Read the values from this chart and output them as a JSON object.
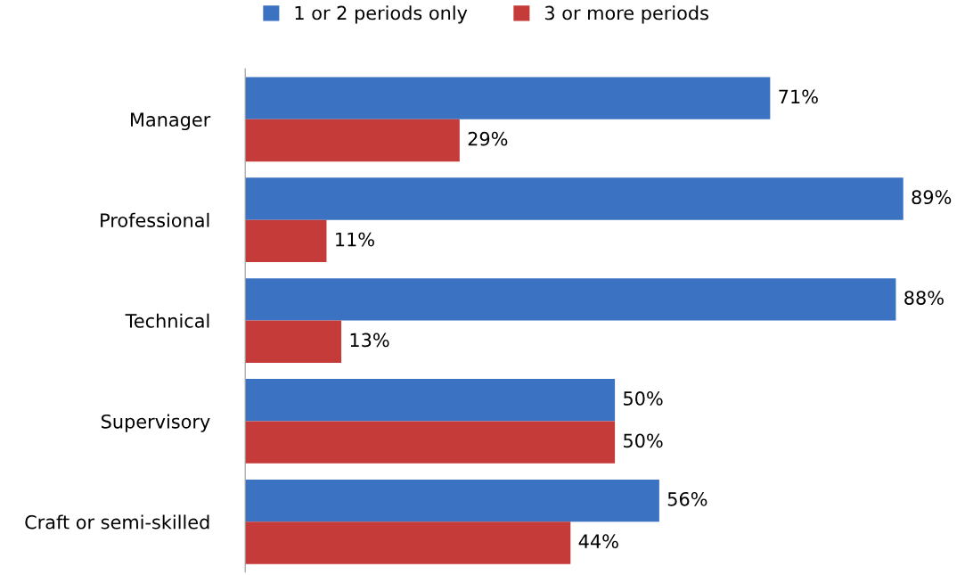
{
  "chart_data": {
    "type": "bar",
    "orientation": "horizontal",
    "categories": [
      "Manager",
      "Professional",
      "Technical",
      "Supervisory",
      "Craft or semi-skilled"
    ],
    "series": [
      {
        "name": "1 or 2 periods only",
        "color": "#3b72c2",
        "values": [
          71,
          89,
          88,
          50,
          56
        ],
        "value_labels": [
          "71%",
          "89%",
          "88%",
          "50%",
          "56%"
        ]
      },
      {
        "name": "3 or more periods",
        "color": "#c43b3a",
        "values": [
          29,
          11,
          13,
          50,
          44
        ],
        "value_labels": [
          "29%",
          "11%",
          "13%",
          "50%",
          "44%"
        ]
      }
    ],
    "legend": "top",
    "grid": false
  }
}
